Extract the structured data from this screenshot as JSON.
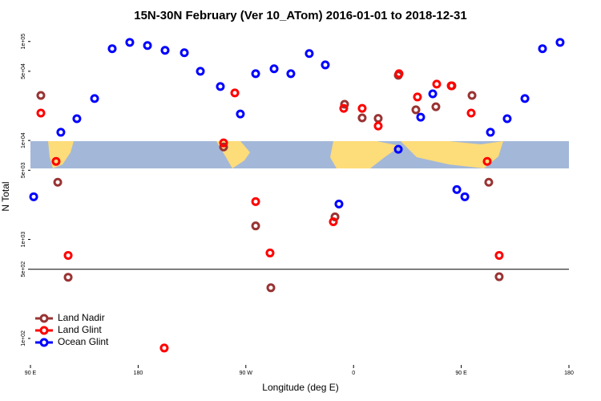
{
  "chart_data": {
    "type": "scatter",
    "title": "15N-30N February (Ver 10_ATom)   2016-01-01 to 2018-12-31",
    "x_label": "Longitude (deg E)",
    "y_label": "N Total",
    "log_y": true,
    "legend": "bottomleft",
    "hline": 500,
    "xlim": [
      90,
      540
    ],
    "xticks": [
      {
        "value": 90,
        "label": "90 E"
      },
      {
        "value": 180,
        "label": "180"
      },
      {
        "value": 270,
        "label": "90 W"
      },
      {
        "value": 360,
        "label": "0"
      },
      {
        "value": 450,
        "label": "90 E"
      },
      {
        "value": 540,
        "label": "180"
      }
    ],
    "ylim": [
      54,
      150000
    ],
    "yticks": [
      {
        "value": 100000,
        "label": "1e+05"
      },
      {
        "value": 50000,
        "label": "5e+04"
      },
      {
        "value": 10000,
        "label": "1e+04"
      },
      {
        "value": 5000,
        "label": "5e+03"
      },
      {
        "value": 1000,
        "label": "1e+03"
      },
      {
        "value": 500,
        "label": "5e+02"
      },
      {
        "value": 100,
        "label": "1e+02"
      }
    ],
    "series": [
      {
        "name": "Land Nadir",
        "color": "#993333",
        "x": [
          98.7,
          112.8,
          121.5,
          251.4,
          278.2,
          290.9,
          344.5,
          352.5,
          367.2,
          380.6,
          397.4,
          412.1,
          428.8,
          442.2,
          459,
          473,
          481.7
        ],
        "values": [
          28500,
          3780,
          415,
          8600,
          1370,
          325,
          1690,
          23200,
          16900,
          16700,
          45600,
          20400,
          21900,
          35700,
          28500,
          3780,
          420
        ]
      },
      {
        "name": "Land Glint",
        "color": "#ff0000",
        "x": [
          98.7,
          111.4,
          121.5,
          201.8,
          251.4,
          260.8,
          278.2,
          290.2,
          343.1,
          351.8,
          367.2,
          380.6,
          398,
          413.4,
          429.5,
          441.6,
          458.3,
          471.7,
          481.7
        ],
        "values": [
          18900,
          6150,
          690,
          80,
          9450,
          30200,
          2410,
          730,
          1510,
          21100,
          21100,
          14000,
          47300,
          27500,
          37100,
          35700,
          18900,
          6150,
          690
        ]
      },
      {
        "name": "Ocean Glint",
        "color": "#0000ff",
        "x": [
          92.7,
          115.4,
          128.8,
          143.6,
          158.3,
          173,
          187.8,
          202.5,
          218.6,
          232,
          248.7,
          265.4,
          278.2,
          293.6,
          307.6,
          323,
          336.4,
          347.8,
          397.4,
          416.1,
          426.2,
          446.3,
          453,
          474.4,
          488.4,
          503.2,
          517.9,
          532.6
        ],
        "values": [
          2700,
          12100,
          16600,
          26500,
          84600,
          98000,
          91000,
          81400,
          77000,
          50000,
          35100,
          18500,
          47300,
          53000,
          47300,
          75500,
          58000,
          2280,
          8150,
          17200,
          29600,
          3190,
          2700,
          12100,
          16600,
          26500,
          84600,
          98000
        ]
      }
    ]
  }
}
